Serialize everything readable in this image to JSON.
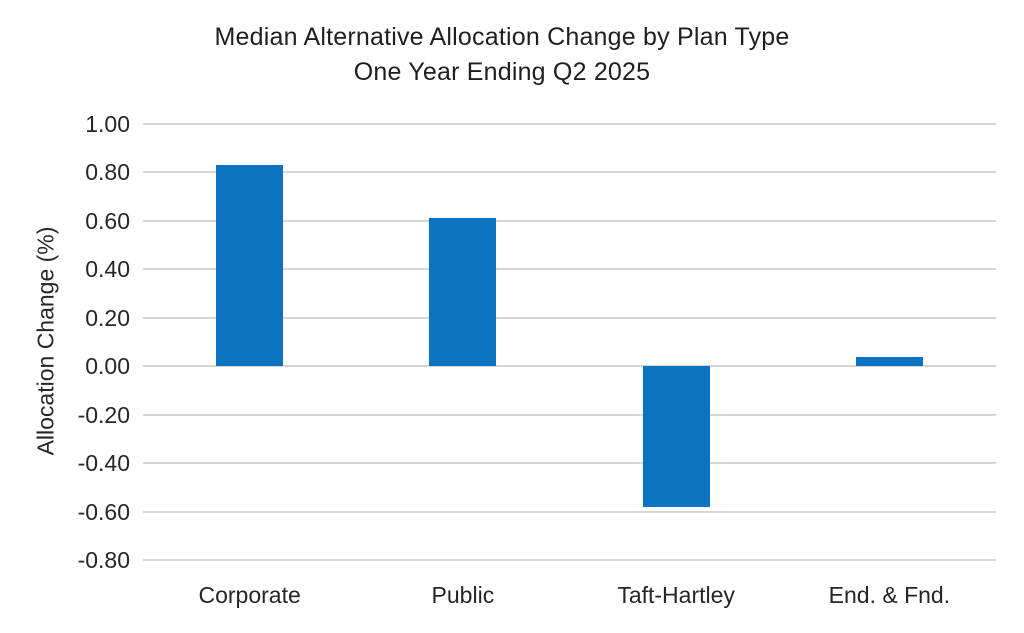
{
  "chart": {
    "title_line1": "Median Alternative Allocation Change by Plan Type",
    "title_line2": "One Year Ending Q2 2025"
  },
  "chart_data": {
    "type": "bar",
    "title": "Median Alternative Allocation Change by Plan Type",
    "subtitle": "One Year Ending Q2 2025",
    "xlabel": "",
    "ylabel": "Allocation Change (%)",
    "categories": [
      "Corporate",
      "Public",
      "Taft-Hartley",
      "End. & Fnd."
    ],
    "values": [
      0.83,
      0.61,
      -0.58,
      0.04
    ],
    "ylim": [
      -0.8,
      1.0
    ],
    "ytick_step": 0.2,
    "ytick_labels": [
      "1.00",
      "0.80",
      "0.60",
      "0.40",
      "0.20",
      "0.00",
      "-0.20",
      "-0.40",
      "-0.60",
      "-0.80"
    ],
    "grid": true,
    "legend": false,
    "bar_color": "#0b73c2",
    "gridline_color": "#d6d6d6",
    "text_color": "#262626"
  }
}
